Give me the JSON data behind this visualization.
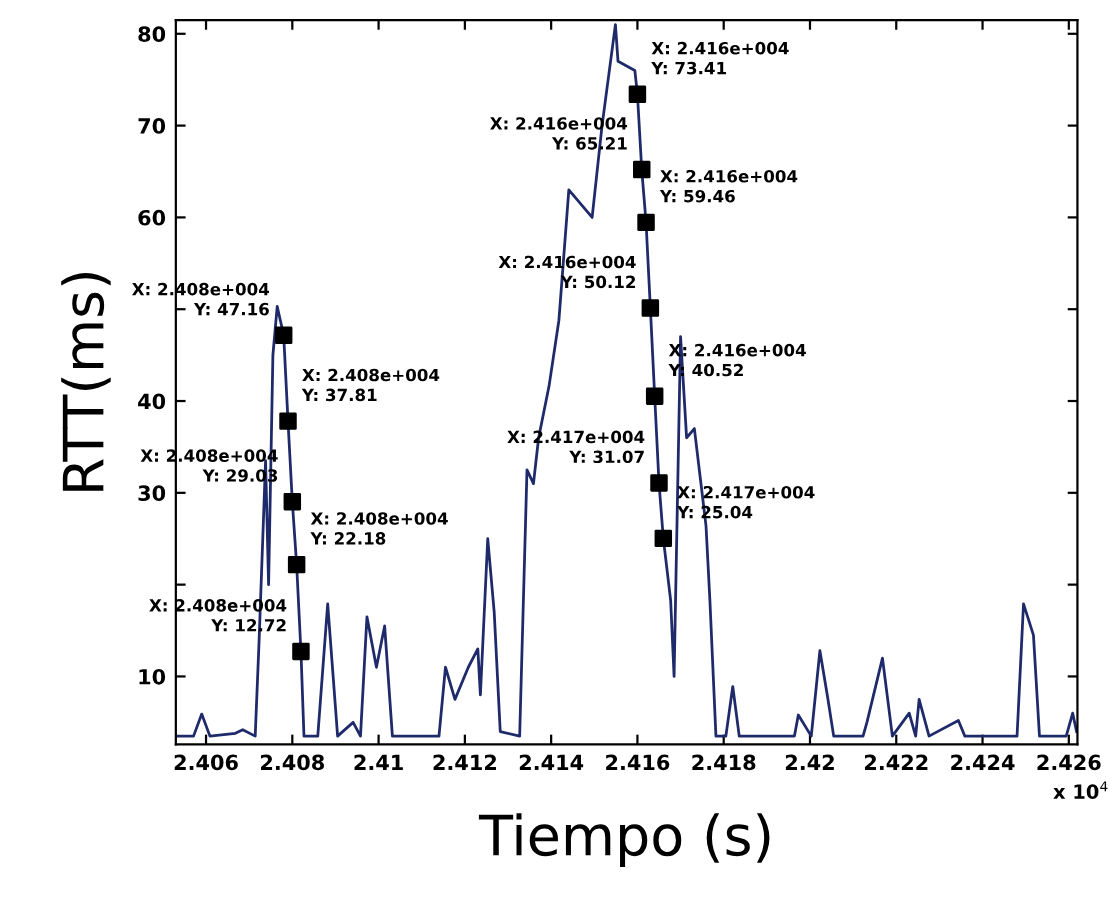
{
  "chart_data": {
    "type": "line",
    "xlabel": "Tiempo (s)",
    "ylabel": "RTT(ms)",
    "xlim": [
      2.4053,
      2.4262
    ],
    "ylim": [
      2.6,
      81.5
    ],
    "xticks": [
      2.406,
      2.408,
      2.41,
      2.412,
      2.414,
      2.416,
      2.418,
      2.42,
      2.422,
      2.424,
      2.426
    ],
    "yticks": [
      10,
      {
        "value": 20,
        "label": null
      },
      30,
      40,
      {
        "value": 50,
        "label": null
      },
      60,
      70,
      80
    ],
    "grid": false,
    "legend": false,
    "series": [
      {
        "color": "#1f2a6b",
        "marker": "none",
        "line_style": "solid",
        "x": [
          2.4053,
          2.40571,
          2.4059,
          2.40609,
          2.40668,
          2.40685,
          2.40714,
          2.40723,
          2.40738,
          2.40745,
          2.40755,
          2.40765,
          2.4078,
          2.4079,
          2.408,
          2.4081,
          2.4082,
          2.40827,
          2.40859,
          2.40882,
          2.40905,
          2.40941,
          2.40958,
          2.40973,
          2.40995,
          2.41014,
          2.41032,
          2.4114,
          2.41155,
          2.41177,
          2.41208,
          2.4123,
          2.41236,
          2.41253,
          2.41268,
          2.41282,
          2.41327,
          2.41344,
          2.41359,
          2.41371,
          2.41395,
          2.41418,
          2.41441,
          2.41495,
          2.41518,
          2.41549,
          2.41555,
          2.41594,
          2.416,
          2.4161,
          2.4162,
          2.4163,
          2.4164,
          2.4165,
          2.4166,
          2.41677,
          2.41685,
          2.417,
          2.41714,
          2.41732,
          2.41759,
          2.41768,
          2.41782,
          2.41805,
          2.41821,
          2.41836,
          2.41964,
          2.41973,
          2.42003,
          2.42023,
          2.42041,
          2.42055,
          2.42123,
          2.42132,
          2.42168,
          2.42191,
          2.4223,
          2.42245,
          2.42253,
          2.42276,
          2.42344,
          2.42359,
          2.4248,
          2.42495,
          2.42518,
          2.42532,
          2.42594,
          2.42609,
          2.42618
        ],
        "values": [
          3.5,
          3.5,
          5.9,
          3.5,
          3.8,
          4.2,
          3.5,
          13.9,
          33.5,
          20,
          45,
          50.3,
          47.16,
          37.81,
          29.03,
          22.18,
          12.72,
          3.5,
          3.5,
          17.9,
          3.5,
          5,
          3.5,
          16.5,
          11,
          15.5,
          3.5,
          3.5,
          11,
          7.5,
          11,
          13,
          8,
          25,
          17,
          4,
          3.5,
          32.5,
          31,
          36,
          41.6,
          48.8,
          63,
          60,
          70,
          81,
          77,
          76,
          73.41,
          65.21,
          59.46,
          50.12,
          40.52,
          31.07,
          25.04,
          18.3,
          10,
          47,
          36,
          37,
          26.4,
          18.3,
          3.5,
          3.5,
          8.9,
          3.5,
          3.5,
          5.8,
          3.5,
          12.8,
          7.7,
          3.5,
          3.5,
          5,
          12,
          3.5,
          6,
          3.5,
          7.5,
          3.5,
          5.2,
          3.5,
          3.5,
          17.9,
          14.5,
          3.5,
          3.5,
          6,
          4
        ]
      },
      {
        "type": "scatter",
        "color": "#000000",
        "marker": "square",
        "x": [
          2.4078,
          2.4079,
          2.408,
          2.4081,
          2.4082,
          2.416,
          2.4161,
          2.4162,
          2.4163,
          2.4164,
          2.4165,
          2.4166
        ],
        "values": [
          47.16,
          37.81,
          29.03,
          22.18,
          12.72,
          73.41,
          65.21,
          59.46,
          50.12,
          40.52,
          31.07,
          25.04
        ]
      }
    ],
    "annotations": [
      {
        "text": "X: 2.408e+004\nY: 47.16",
        "x": 2.4078,
        "y": 47.16
      },
      {
        "text": "X: 2.408e+004\nY: 37.81",
        "x": 2.4079,
        "y": 37.81
      },
      {
        "text": "X: 2.408e+004\nY: 29.03",
        "x": 2.408,
        "y": 29.03
      },
      {
        "text": "X: 2.408e+004\nY: 22.18",
        "x": 2.4081,
        "y": 22.18
      },
      {
        "text": "X: 2.408e+004\nY: 12.72",
        "x": 2.4082,
        "y": 12.72
      },
      {
        "text": "X: 2.416e+004\nY: 73.41",
        "x": 2.416,
        "y": 73.41
      },
      {
        "text": "X: 2.416e+004\nY: 65.21",
        "x": 2.4161,
        "y": 65.21
      },
      {
        "text": "X: 2.416e+004\nY: 59.46",
        "x": 2.4162,
        "y": 59.46
      },
      {
        "text": "X: 2.416e+004\nY: 50.12",
        "x": 2.4163,
        "y": 50.12
      },
      {
        "text": "X: 2.416e+004\nY: 40.52",
        "x": 2.4164,
        "y": 40.52
      },
      {
        "text": "X: 2.417e+004\nY: 31.07",
        "x": 2.4165,
        "y": 31.07
      },
      {
        "text": "X: 2.417e+004\nY: 25.04",
        "x": 2.4166,
        "y": 25.04
      },
      "x 10$^{4}$"
    ]
  }
}
